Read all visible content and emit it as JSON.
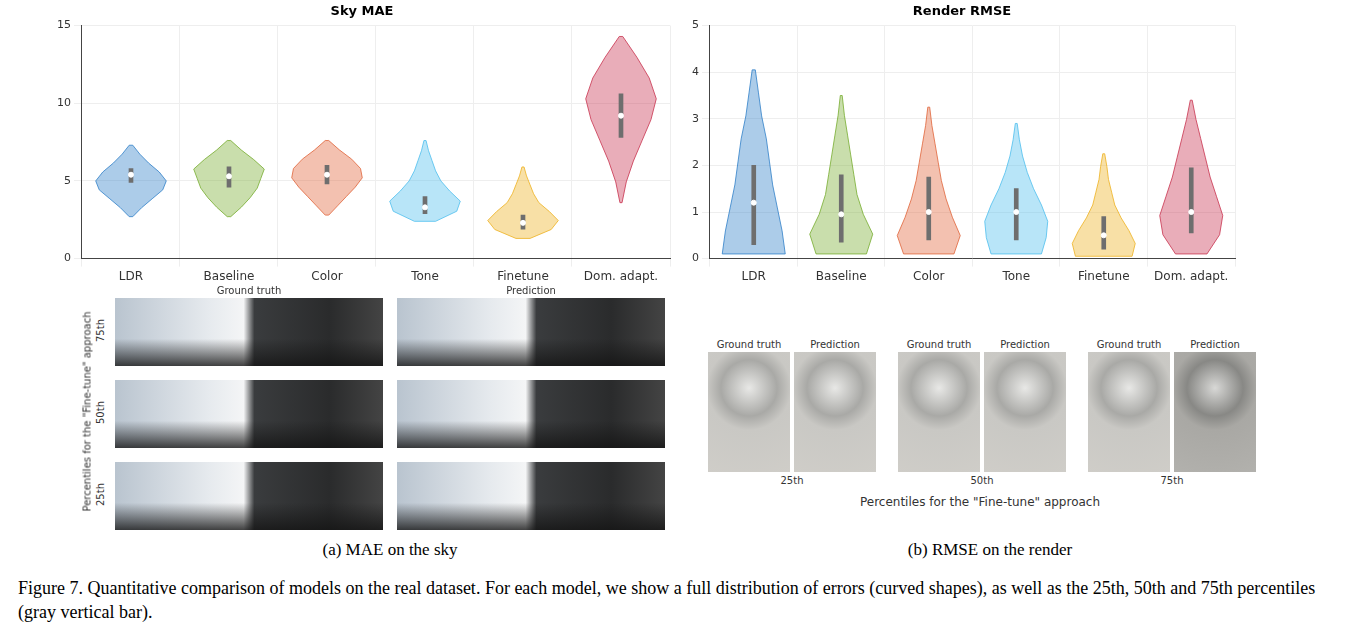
{
  "chart_data": [
    {
      "type": "violin",
      "title": "Sky MAE",
      "categories": [
        "LDR",
        "Baseline",
        "Color",
        "Tone",
        "Finetune",
        "Dom. adapt."
      ],
      "colors": [
        "#2f7fc8",
        "#77ac30",
        "#e0643a",
        "#4dbeee",
        "#edb120",
        "#c8334f"
      ],
      "min": [
        2.7,
        2.7,
        2.8,
        2.4,
        1.3,
        3.6
      ],
      "max": [
        7.3,
        7.6,
        7.6,
        7.6,
        5.9,
        14.3
      ],
      "density": [
        [
          0.05,
          0.3,
          0.6,
          0.9,
          1.0,
          0.8,
          0.5,
          0.25,
          0.05
        ],
        [
          0.05,
          0.35,
          0.6,
          0.8,
          0.9,
          1.0,
          0.7,
          0.35,
          0.05
        ],
        [
          0.05,
          0.3,
          0.55,
          0.8,
          1.0,
          0.95,
          0.7,
          0.35,
          0.05
        ],
        [
          0.3,
          0.9,
          1.0,
          0.7,
          0.45,
          0.3,
          0.2,
          0.1,
          0.03
        ],
        [
          0.2,
          0.8,
          1.0,
          0.75,
          0.45,
          0.3,
          0.2,
          0.1,
          0.03
        ],
        [
          0.03,
          0.15,
          0.35,
          0.6,
          0.85,
          1.0,
          0.8,
          0.45,
          0.05
        ]
      ],
      "q25": [
        4.9,
        4.6,
        4.8,
        2.9,
        1.9,
        7.8
      ],
      "median": [
        5.4,
        5.3,
        5.4,
        3.3,
        2.3,
        9.2
      ],
      "q75": [
        5.8,
        5.9,
        6.0,
        4.0,
        2.8,
        10.6
      ],
      "ylim": [
        0,
        15
      ],
      "yticks": [
        0,
        5,
        10,
        15
      ],
      "grid": true
    },
    {
      "type": "violin",
      "title": "Render RMSE",
      "categories": [
        "LDR",
        "Baseline",
        "Color",
        "Tone",
        "Finetune",
        "Dom. adapt."
      ],
      "colors": [
        "#2f7fc8",
        "#77ac30",
        "#e0643a",
        "#4dbeee",
        "#edb120",
        "#c8334f"
      ],
      "min": [
        0.1,
        0.1,
        0.1,
        0.1,
        0.05,
        0.1
      ],
      "max": [
        4.05,
        3.5,
        3.25,
        2.9,
        2.25,
        3.4
      ],
      "density": [
        [
          1.0,
          0.9,
          0.75,
          0.6,
          0.5,
          0.4,
          0.25,
          0.15,
          0.05
        ],
        [
          0.8,
          1.0,
          0.7,
          0.5,
          0.4,
          0.3,
          0.2,
          0.1,
          0.03
        ],
        [
          0.8,
          1.0,
          0.75,
          0.55,
          0.4,
          0.3,
          0.2,
          0.1,
          0.03
        ],
        [
          0.8,
          0.95,
          1.0,
          0.8,
          0.55,
          0.35,
          0.2,
          0.1,
          0.03
        ],
        [
          0.9,
          1.0,
          0.8,
          0.55,
          0.35,
          0.25,
          0.15,
          0.1,
          0.03
        ],
        [
          0.5,
          0.9,
          1.0,
          0.8,
          0.6,
          0.45,
          0.3,
          0.15,
          0.03
        ]
      ],
      "q25": [
        0.3,
        0.35,
        0.4,
        0.4,
        0.2,
        0.55
      ],
      "median": [
        1.2,
        0.95,
        1.0,
        1.0,
        0.5,
        1.0
      ],
      "q75": [
        2.0,
        1.8,
        1.75,
        1.5,
        0.9,
        1.95
      ],
      "ylim": [
        0,
        5
      ],
      "yticks": [
        0,
        1,
        2,
        3,
        4,
        5
      ],
      "grid": true
    }
  ],
  "figure": {
    "left_panel": {
      "column_labels": [
        "Ground truth",
        "Prediction"
      ],
      "row_labels": [
        "75th",
        "50th",
        "25th"
      ],
      "axis_label": "Percentiles for the \"Fine-tune\" approach",
      "caption": "(a) MAE on the sky"
    },
    "right_panel": {
      "pair_labels": [
        "Ground truth",
        "Prediction"
      ],
      "percentiles": [
        "25th",
        "50th",
        "75th"
      ],
      "axis_label": "Percentiles for the \"Fine-tune\" approach",
      "caption": "(b) RMSE on the render"
    },
    "caption": "Figure 7. Quantitative comparison of models on the real dataset. For each model, we show a full distribution of errors (curved shapes), as well as the 25th, 50th and 75th percentiles (gray vertical bar)."
  }
}
